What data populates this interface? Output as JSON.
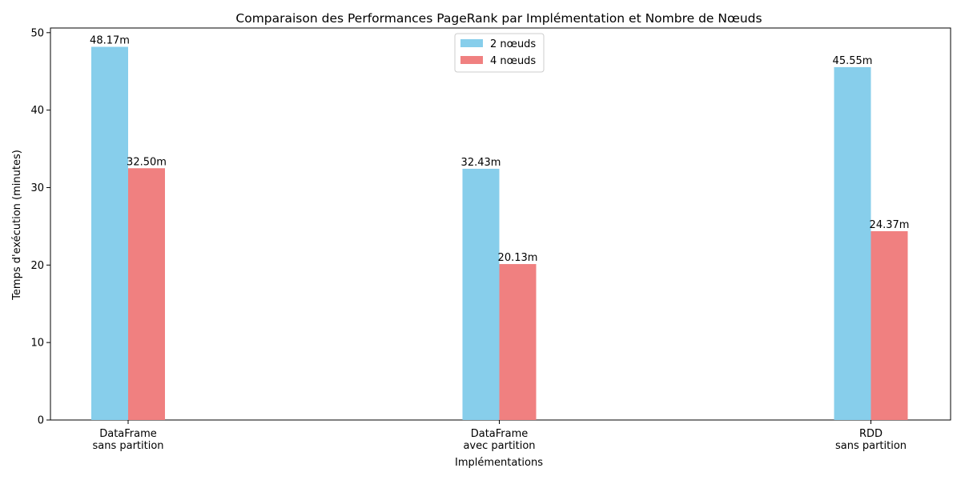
{
  "chart_data": {
    "type": "bar",
    "title": "Comparaison des Performances PageRank par Implémentation et Nombre de Nœuds",
    "xlabel": "Implémentations",
    "ylabel": "Temps d'exécution (minutes)",
    "categories": [
      [
        "DataFrame",
        "sans partition"
      ],
      [
        "DataFrame",
        "avec partition"
      ],
      [
        "RDD",
        "sans partition"
      ]
    ],
    "series": [
      {
        "name": "2 nœuds",
        "color": "#87CEEB",
        "values": [
          48.17,
          32.43,
          45.55
        ],
        "labels": [
          "48.17m",
          "32.43m",
          "45.55m"
        ]
      },
      {
        "name": "4 nœuds",
        "color": "#F08080",
        "values": [
          32.5,
          20.13,
          24.37
        ],
        "labels": [
          "32.50m",
          "20.13m",
          "24.37m"
        ]
      }
    ],
    "ylim": [
      0,
      50.6
    ],
    "yticks": [
      0,
      10,
      20,
      30,
      40,
      50
    ],
    "grid": false,
    "legend_position": "top-center"
  }
}
